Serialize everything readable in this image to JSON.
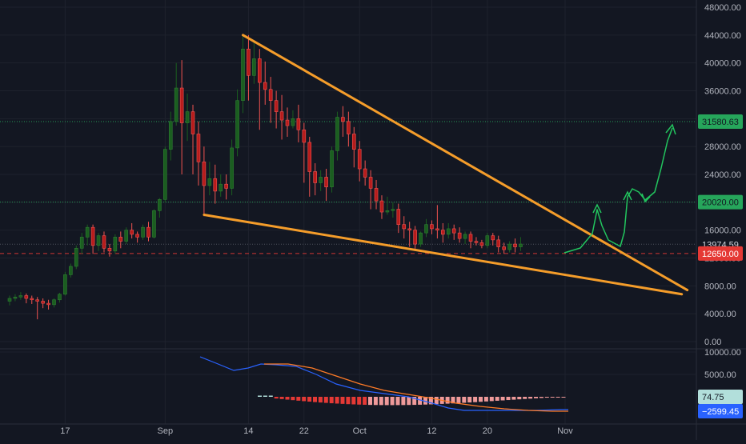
{
  "chart_data": {
    "type": "candlestick",
    "colors": {
      "background": "#131722",
      "grid": "#1e222d",
      "axis_text": "#b2b5be",
      "up": "#26a69a",
      "up_body": "#1b5e20",
      "down": "#ef5350",
      "down_body": "#b71c1c",
      "wedge_line": "#f59d2a",
      "projection": "#22c55e",
      "level_green": "#26a65b",
      "level_red": "#e53935",
      "macd": "#2962ff",
      "signal": "#ff7b26",
      "hist_neg": "#ef9a9a",
      "hist_neg_dark": "#e53935",
      "hist_pos": "#b2dfdb",
      "price_label_text_dark": "#131722"
    },
    "price_axis": {
      "min": 0,
      "max": 48000,
      "ticks": [
        "48000.00",
        "44000.00",
        "40000.00",
        "36000.00",
        "32000.00",
        "28000.00",
        "24000.00",
        "20000.00",
        "16000.00",
        "12000.00",
        "8000.00",
        "4000.00",
        "0.00"
      ],
      "tick_values": [
        48000,
        44000,
        40000,
        36000,
        32000,
        28000,
        24000,
        20000,
        16000,
        12000,
        8000,
        4000,
        0
      ]
    },
    "time_axis": {
      "labels": [
        "17",
        "Sep",
        "14",
        "22",
        "Oct",
        "12",
        "20",
        "Nov"
      ],
      "label_bar_index": [
        10,
        28,
        43,
        53,
        63,
        76,
        86,
        100
      ]
    },
    "price_labels": [
      {
        "text": "31580.63",
        "value": 31580.63,
        "bg": "#26a65b",
        "fg": "#131722",
        "line": "dotted-green"
      },
      {
        "text": "20020.00",
        "value": 20020.0,
        "bg": "#26a65b",
        "fg": "#131722",
        "line": "dotted-green"
      },
      {
        "text": "13974.59",
        "value": 13974.59,
        "bg": "#131722",
        "fg": "#d1d4dc",
        "line": "dotted-gray"
      },
      {
        "text": "12650.00",
        "value": 12650.0,
        "bg": "#e53935",
        "fg": "#ffffff",
        "line": "dashed-red"
      }
    ],
    "candles": [
      [
        5800,
        6600,
        6200,
        5200
      ],
      [
        6200,
        6800,
        6400,
        5800
      ],
      [
        6400,
        7100,
        6600,
        6000
      ],
      [
        6600,
        6900,
        6200,
        5500
      ],
      [
        6200,
        6600,
        6000,
        5400
      ],
      [
        6000,
        6400,
        5800,
        3200
      ],
      [
        5800,
        6200,
        5500,
        4800
      ],
      [
        5500,
        6000,
        5300,
        4600
      ],
      [
        5300,
        6200,
        6000,
        4900
      ],
      [
        6000,
        7000,
        6800,
        5600
      ],
      [
        6800,
        10000,
        9600,
        6600
      ],
      [
        9600,
        11200,
        10800,
        9200
      ],
      [
        10800,
        13800,
        13400,
        10400
      ],
      [
        13400,
        15600,
        15000,
        12600
      ],
      [
        15000,
        16800,
        16400,
        13800
      ],
      [
        16400,
        16800,
        13800,
        12600
      ],
      [
        13800,
        15600,
        15200,
        13000
      ],
      [
        15200,
        15800,
        13400,
        12800
      ],
      [
        13400,
        14000,
        13000,
        12200
      ],
      [
        13000,
        15400,
        15000,
        12600
      ],
      [
        15000,
        15800,
        14400,
        13400
      ],
      [
        14400,
        16400,
        16000,
        14000
      ],
      [
        16000,
        17000,
        15400,
        14800
      ],
      [
        15400,
        15800,
        15000,
        14200
      ],
      [
        15000,
        16800,
        16400,
        14600
      ],
      [
        16400,
        17200,
        15000,
        14400
      ],
      [
        15000,
        19000,
        18800,
        14800
      ],
      [
        18800,
        20600,
        20400,
        17800
      ],
      [
        20400,
        28000,
        27600,
        20000
      ],
      [
        27600,
        33000,
        31600,
        26000
      ],
      [
        31600,
        40000,
        36400,
        31000
      ],
      [
        36400,
        40400,
        31400,
        24000
      ],
      [
        31400,
        35600,
        33000,
        28800
      ],
      [
        33000,
        34000,
        29800,
        24000
      ],
      [
        29800,
        31600,
        25800,
        22400
      ],
      [
        25800,
        28000,
        22400,
        18000
      ],
      [
        22400,
        25800,
        23400,
        21000
      ],
      [
        23400,
        25400,
        21600,
        19800
      ],
      [
        21600,
        24000,
        22600,
        20800
      ],
      [
        22600,
        24000,
        22000,
        20400
      ],
      [
        22000,
        29000,
        27800,
        21000
      ],
      [
        27800,
        36200,
        34600,
        26600
      ],
      [
        34600,
        43800,
        42000,
        32800
      ],
      [
        42000,
        44000,
        38200,
        34600
      ],
      [
        38200,
        43000,
        40600,
        37000
      ],
      [
        40600,
        42000,
        37200,
        30400
      ],
      [
        37200,
        40200,
        36200,
        34000
      ],
      [
        36200,
        38000,
        34600,
        31400
      ],
      [
        34600,
        36000,
        33000,
        30600
      ],
      [
        33000,
        35400,
        31800,
        29000
      ],
      [
        31800,
        33600,
        31000,
        29400
      ],
      [
        31000,
        33200,
        32000,
        30600
      ],
      [
        32000,
        34000,
        30400,
        28600
      ],
      [
        30400,
        31400,
        28600,
        22800
      ],
      [
        28600,
        29400,
        24400,
        20800
      ],
      [
        24400,
        25600,
        22800,
        21000
      ],
      [
        22800,
        24600,
        23600,
        21600
      ],
      [
        23600,
        24800,
        22200,
        20200
      ],
      [
        22200,
        28000,
        27400,
        21400
      ],
      [
        27400,
        33000,
        32200,
        26000
      ],
      [
        32200,
        33800,
        31600,
        29400
      ],
      [
        31600,
        33000,
        29800,
        28000
      ],
      [
        29800,
        30800,
        27600,
        25000
      ],
      [
        27600,
        28800,
        24800,
        23000
      ],
      [
        24800,
        26000,
        23600,
        22400
      ],
      [
        23600,
        24600,
        22000,
        19000
      ],
      [
        22000,
        23200,
        20200,
        19000
      ],
      [
        20200,
        21000,
        18600,
        17600
      ],
      [
        18600,
        20800,
        18800,
        18200
      ],
      [
        18800,
        20000,
        19000,
        17800
      ],
      [
        19000,
        19800,
        16800,
        15600
      ],
      [
        16800,
        18000,
        16200,
        14800
      ],
      [
        16200,
        17200,
        16000,
        13600
      ],
      [
        16000,
        16600,
        14000,
        13000
      ],
      [
        14000,
        15800,
        15600,
        13600
      ],
      [
        15600,
        17600,
        16800,
        15000
      ],
      [
        16800,
        17400,
        16200,
        15400
      ],
      [
        16200,
        19600,
        16000,
        14800
      ],
      [
        16000,
        17000,
        15400,
        14200
      ],
      [
        15400,
        17000,
        16200,
        14800
      ],
      [
        16200,
        16800,
        15600,
        14600
      ],
      [
        15600,
        16400,
        14800,
        14200
      ],
      [
        14800,
        15800,
        15400,
        14000
      ],
      [
        15400,
        15800,
        14400,
        13400
      ],
      [
        14400,
        15000,
        14200,
        13800
      ],
      [
        14200,
        14600,
        13800,
        13400
      ],
      [
        13800,
        15600,
        15200,
        13400
      ],
      [
        15200,
        15600,
        14600,
        13800
      ],
      [
        14600,
        15200,
        13600,
        12800
      ],
      [
        13600,
        14200,
        13200,
        12600
      ],
      [
        13200,
        14400,
        14000,
        12800
      ],
      [
        14000,
        14800,
        13600,
        12800
      ],
      [
        13600,
        15000,
        14000,
        13000
      ]
    ],
    "trendlines": [
      {
        "name": "upper",
        "from": [
          42,
          44000
        ],
        "to": [
          122,
          7400
        ]
      },
      {
        "name": "lower",
        "from": [
          35,
          18200
        ],
        "to": [
          121,
          6800
        ]
      }
    ],
    "macd": {
      "axis_ticks": [
        "10000.00",
        "5000.00"
      ],
      "value_labels": [
        {
          "text": "74.75",
          "bg": "#b2dfdb",
          "fg": "#131722"
        },
        {
          "text": "−2599.45",
          "bg": "#2962ff",
          "fg": "#ffffff"
        }
      ]
    }
  }
}
